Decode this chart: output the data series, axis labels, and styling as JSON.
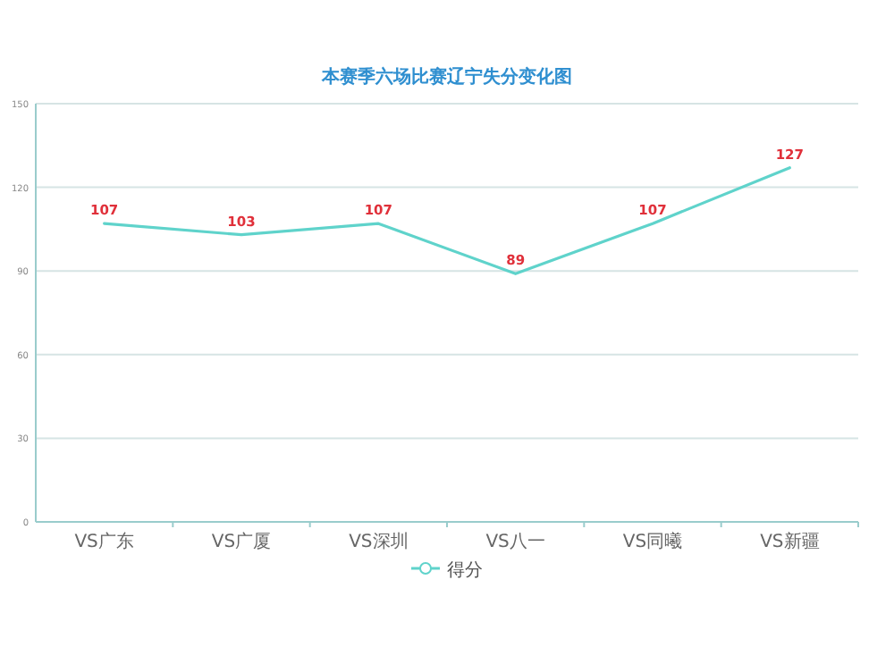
{
  "chart_data": {
    "type": "line",
    "title": "本赛季六场比赛辽宁失分变化图",
    "categories": [
      "VS广东",
      "VS广厦",
      "VS深圳",
      "VS八一",
      "VS同曦",
      "VS新疆"
    ],
    "series": [
      {
        "name": "得分",
        "color": "#5fd3cb",
        "values": [
          107,
          103,
          107,
          89,
          107,
          127
        ]
      }
    ],
    "ylim": [
      0,
      150
    ],
    "yticks": [
      0,
      30,
      60,
      90,
      120,
      150
    ],
    "grid": "y",
    "legend": "bottom",
    "data_labels": true,
    "marker": "none",
    "line_style": "solid"
  }
}
